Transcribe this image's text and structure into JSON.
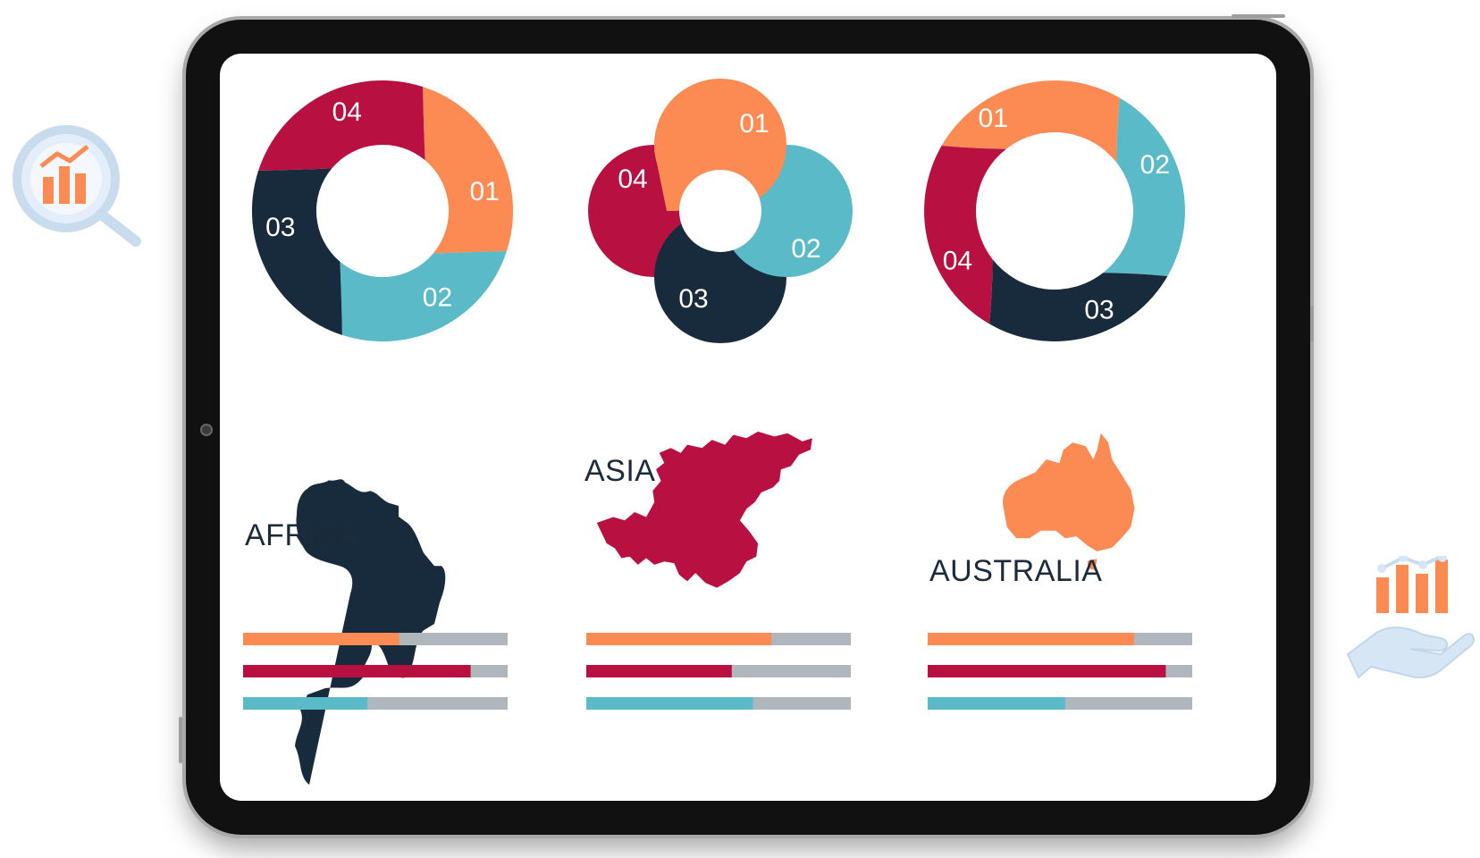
{
  "colors": {
    "orange": "#fb8a53",
    "crimson": "#b81141",
    "teal": "#5abac7",
    "navy": "#182b3d",
    "track": "#b0b7bc"
  },
  "rings": [
    {
      "type": "cycle-ring",
      "segments": [
        {
          "label": "01",
          "color": "orange"
        },
        {
          "label": "02",
          "color": "teal"
        },
        {
          "label": "03",
          "color": "navy"
        },
        {
          "label": "04",
          "color": "crimson"
        }
      ]
    },
    {
      "type": "interlocking-loops",
      "segments": [
        {
          "label": "01",
          "color": "orange"
        },
        {
          "label": "02",
          "color": "teal"
        },
        {
          "label": "03",
          "color": "navy"
        },
        {
          "label": "04",
          "color": "crimson"
        }
      ]
    },
    {
      "type": "cycle-ring",
      "segments": [
        {
          "label": "01",
          "color": "orange"
        },
        {
          "label": "02",
          "color": "teal"
        },
        {
          "label": "03",
          "color": "navy"
        },
        {
          "label": "04",
          "color": "crimson"
        }
      ]
    }
  ],
  "regions": [
    {
      "name": "AFRICA",
      "icon": "africa-map-icon",
      "map_color": "navy",
      "bars": [
        {
          "color": "orange",
          "fraction": 0.59
        },
        {
          "color": "crimson",
          "fraction": 0.86
        },
        {
          "color": "teal",
          "fraction": 0.47
        }
      ]
    },
    {
      "name": "ASIA",
      "icon": "asia-map-icon",
      "map_color": "crimson",
      "bars": [
        {
          "color": "orange",
          "fraction": 0.7
        },
        {
          "color": "crimson",
          "fraction": 0.55
        },
        {
          "color": "teal",
          "fraction": 0.63
        }
      ]
    },
    {
      "name": "AUSTRALIA",
      "icon": "australia-map-icon",
      "map_color": "orange",
      "bars": [
        {
          "color": "orange",
          "fraction": 0.78
        },
        {
          "color": "crimson",
          "fraction": 0.9
        },
        {
          "color": "teal",
          "fraction": 0.52
        }
      ]
    }
  ],
  "decorations": {
    "left": "magnifier-chart-icon",
    "right": "hand-chart-icon"
  }
}
